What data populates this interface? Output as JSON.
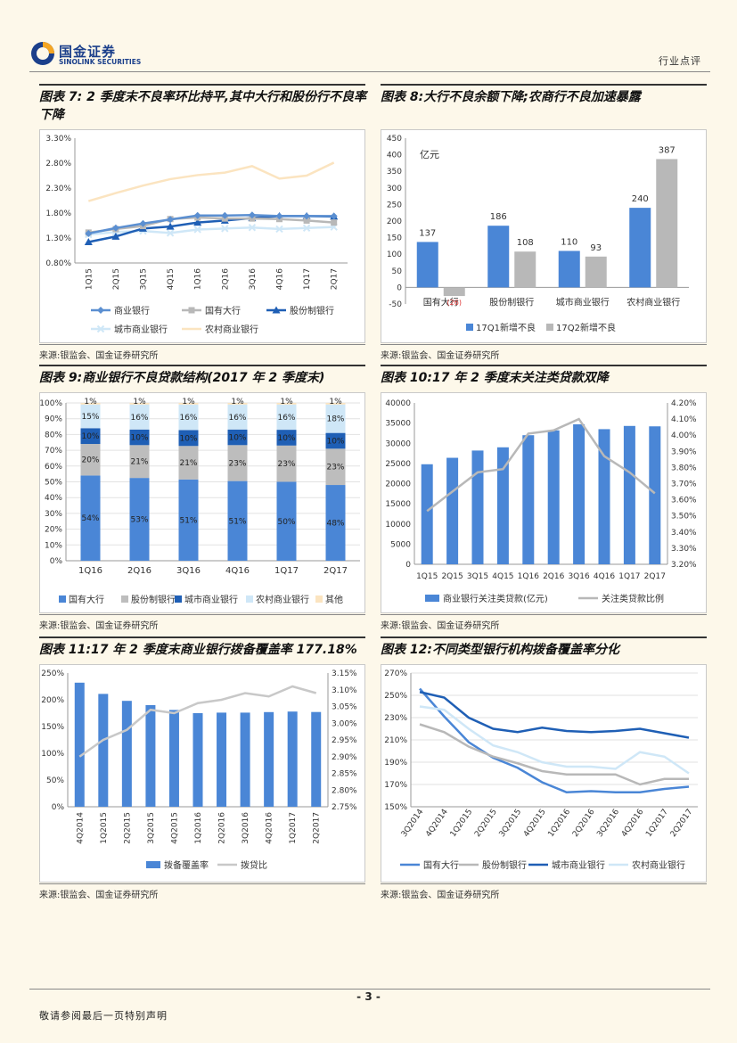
{
  "header": {
    "logo_cn": "国金证券",
    "logo_en": "SINOLINK SECURITIES",
    "doc_type": "行业点评"
  },
  "figures": [
    {
      "title": "图表 7:  2 季度末不良率环比持平,其中大行和股份行不良率下降",
      "source": "来源:银监会、国金证券研究所"
    },
    {
      "title": "图表 8:大行不良余额下降;农商行不良加速暴露",
      "source": "来源:银监会、国金证券研究所"
    },
    {
      "title": "图表 9:商业银行不良贷款结构(2017 年 2 季度末)",
      "source": "来源:银监会、国金证券研究所"
    },
    {
      "title": "图表 10:17 年 2 季度末关注类贷款双降",
      "source": "来源:银监会、国金证券研究所"
    },
    {
      "title": "图表 11:17 年 2 季度末商业银行拨备覆盖率 177.18%",
      "source": "来源:银监会、国金证券研究所"
    },
    {
      "title": "图表 12:不同类型银行机构拨备覆盖率分化",
      "source": "来源:银监会、国金证券研究所"
    }
  ],
  "footer": {
    "page": "- 3 -",
    "disclaimer": "敬请参阅最后一页特别声明"
  },
  "chart_data": [
    {
      "id": "fig7",
      "type": "line",
      "categories": [
        "1Q15",
        "2Q15",
        "3Q15",
        "4Q15",
        "1Q16",
        "2Q16",
        "3Q16",
        "4Q16",
        "1Q17",
        "2Q17"
      ],
      "yticks": [
        "0.80%",
        "1.30%",
        "1.80%",
        "2.30%",
        "2.80%",
        "3.30%"
      ],
      "ylim": [
        0.8,
        3.3
      ],
      "series": [
        {
          "name": "商业银行",
          "color": "#5b8fd1",
          "marker": "diamond",
          "values": [
            1.39,
            1.5,
            1.59,
            1.67,
            1.75,
            1.75,
            1.76,
            1.74,
            1.74,
            1.74
          ]
        },
        {
          "name": "国有大行",
          "color": "#b8b8b8",
          "marker": "square",
          "values": [
            1.41,
            1.48,
            1.54,
            1.68,
            1.71,
            1.69,
            1.69,
            1.68,
            1.65,
            1.61
          ]
        },
        {
          "name": "股份制银行",
          "color": "#1f5fb5",
          "marker": "triangle",
          "values": [
            1.22,
            1.33,
            1.49,
            1.53,
            1.61,
            1.65,
            1.7,
            1.74,
            1.74,
            1.73
          ]
        },
        {
          "name": "城市商业银行",
          "color": "#cfe7f7",
          "marker": "cross",
          "values": [
            1.37,
            1.42,
            1.44,
            1.4,
            1.47,
            1.49,
            1.51,
            1.48,
            1.5,
            1.52
          ]
        },
        {
          "name": "农村商业银行",
          "color": "#fbe4c0",
          "marker": "none",
          "values": [
            2.04,
            2.2,
            2.35,
            2.48,
            2.56,
            2.61,
            2.74,
            2.49,
            2.55,
            2.81
          ]
        }
      ]
    },
    {
      "id": "fig8",
      "type": "bar",
      "ylabel": "亿元",
      "categories": [
        "国有大行",
        "股份制银行",
        "城市商业银行",
        "农村商业银行"
      ],
      "yticks": [
        "-50",
        "0",
        "50",
        "100",
        "150",
        "200",
        "250",
        "300",
        "350",
        "400",
        "450"
      ],
      "ylim": [
        -50,
        450
      ],
      "series": [
        {
          "name": "17Q1新增不良",
          "color": "#4a86d6",
          "values": [
            137,
            186,
            110,
            240
          ],
          "labels": [
            "137",
            "186",
            "110",
            "240"
          ]
        },
        {
          "name": "17Q2新增不良",
          "color": "#b8b8b8",
          "values": [
            -26,
            108,
            93,
            387
          ],
          "labels": [
            "(26)",
            "108",
            "93",
            "387"
          ]
        }
      ]
    },
    {
      "id": "fig9",
      "type": "stacked-bar",
      "categories": [
        "1Q16",
        "2Q16",
        "3Q16",
        "4Q16",
        "1Q17",
        "2Q17"
      ],
      "yticks": [
        "0%",
        "10%",
        "20%",
        "30%",
        "40%",
        "50%",
        "60%",
        "70%",
        "80%",
        "90%",
        "100%"
      ],
      "ylim": [
        0,
        100
      ],
      "series": [
        {
          "name": "国有大行",
          "color": "#4a86d6",
          "values": [
            54,
            53,
            51,
            51,
            50,
            48
          ],
          "labels": [
            "54%",
            "53%",
            "51%",
            "51%",
            "50%",
            "48%"
          ]
        },
        {
          "name": "股份制银行",
          "color": "#bdbdbd",
          "values": [
            20,
            21,
            21,
            23,
            23,
            23
          ],
          "labels": [
            "20%",
            "21%",
            "21%",
            "23%",
            "23%",
            "23%"
          ]
        },
        {
          "name": "城市商业银行",
          "color": "#1f5fb5",
          "values": [
            10,
            10,
            10,
            10,
            10,
            10
          ],
          "labels": [
            "10%",
            "10%",
            "10%",
            "10%",
            "10%",
            "10%"
          ]
        },
        {
          "name": "农村商业银行",
          "color": "#cfe7f7",
          "values": [
            15,
            16,
            16,
            16,
            16,
            18
          ],
          "labels": [
            "15%",
            "16%",
            "16%",
            "16%",
            "16%",
            "18%"
          ]
        },
        {
          "name": "其他",
          "color": "#fbe4c0",
          "values": [
            1,
            1,
            1,
            1,
            1,
            1
          ],
          "labels": [
            "1%",
            "1%",
            "1%",
            "1%",
            "1%",
            "1%"
          ]
        }
      ]
    },
    {
      "id": "fig10",
      "type": "bar-line",
      "categories": [
        "1Q15",
        "2Q15",
        "3Q15",
        "4Q15",
        "1Q16",
        "2Q16",
        "3Q16",
        "4Q16",
        "1Q17",
        "2Q17"
      ],
      "yticks_left": [
        "0",
        "5000",
        "10000",
        "15000",
        "20000",
        "25000",
        "30000",
        "35000",
        "40000"
      ],
      "ylim_left": [
        0,
        40000
      ],
      "yticks_right": [
        "3.20%",
        "3.30%",
        "3.40%",
        "3.50%",
        "3.60%",
        "3.70%",
        "3.80%",
        "3.90%",
        "4.00%",
        "4.10%",
        "4.20%"
      ],
      "ylim_right": [
        3.2,
        4.2
      ],
      "bars": {
        "name": "商业银行关注类贷款(亿元)",
        "color": "#4a86d6",
        "values": [
          24800,
          26400,
          28200,
          29000,
          32000,
          33200,
          34700,
          33500,
          34300,
          34200
        ]
      },
      "line": {
        "name": "关注类贷款比例",
        "color": "#b8b8b8",
        "values": [
          3.53,
          3.65,
          3.77,
          3.79,
          4.01,
          4.03,
          4.1,
          3.87,
          3.77,
          3.64
        ]
      }
    },
    {
      "id": "fig11",
      "type": "bar-line",
      "categories": [
        "4Q2014",
        "1Q2015",
        "2Q2015",
        "3Q2015",
        "4Q2015",
        "1Q2016",
        "2Q2016",
        "3Q2016",
        "4Q2016",
        "1Q2017",
        "2Q2017"
      ],
      "yticks_left": [
        "0%",
        "50%",
        "100%",
        "150%",
        "200%",
        "250%"
      ],
      "ylim_left": [
        0,
        250
      ],
      "yticks_right": [
        "2.75%",
        "2.80%",
        "2.85%",
        "2.90%",
        "2.95%",
        "3.00%",
        "3.05%",
        "3.10%",
        "3.15%"
      ],
      "ylim_right": [
        2.75,
        3.15
      ],
      "bars": {
        "name": "拨备覆盖率",
        "color": "#4a86d6",
        "values": [
          232,
          211,
          198,
          190,
          181,
          175,
          176,
          176,
          177,
          178,
          177.18
        ]
      },
      "line": {
        "name": "拨贷比",
        "color": "#c8c8c8",
        "values": [
          2.9,
          2.95,
          2.98,
          3.04,
          3.03,
          3.06,
          3.07,
          3.09,
          3.08,
          3.11,
          3.09
        ]
      }
    },
    {
      "id": "fig12",
      "type": "line",
      "categories": [
        "3Q2014",
        "4Q2014",
        "1Q2015",
        "2Q2015",
        "3Q2015",
        "4Q2015",
        "1Q2016",
        "2Q2016",
        "3Q2016",
        "4Q2016",
        "1Q2017",
        "2Q2017"
      ],
      "yticks": [
        "150%",
        "170%",
        "190%",
        "210%",
        "230%",
        "250%",
        "270%"
      ],
      "ylim": [
        150,
        270
      ],
      "series": [
        {
          "name": "国有大行",
          "color": "#4a86d6",
          "values": [
            256,
            231,
            208,
            194,
            185,
            172,
            163,
            164,
            163,
            163,
            166,
            168
          ]
        },
        {
          "name": "股份制银行",
          "color": "#b8b8b8",
          "values": [
            224,
            217,
            204,
            195,
            189,
            182,
            179,
            179,
            179,
            170,
            175,
            175
          ]
        },
        {
          "name": "城市商业银行",
          "color": "#1f5fb5",
          "values": [
            253,
            248,
            230,
            220,
            217,
            221,
            218,
            217,
            218,
            220,
            216,
            212
          ]
        },
        {
          "name": "农村商业银行",
          "color": "#cfe7f7",
          "values": [
            240,
            237,
            220,
            205,
            199,
            190,
            186,
            186,
            184,
            199,
            195,
            180
          ]
        }
      ]
    }
  ]
}
